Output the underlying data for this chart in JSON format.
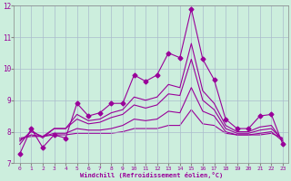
{
  "xlabel": "Windchill (Refroidissement éolien,°C)",
  "x": [
    0,
    1,
    2,
    3,
    4,
    5,
    6,
    7,
    8,
    9,
    10,
    11,
    12,
    13,
    14,
    15,
    16,
    17,
    18,
    19,
    20,
    21,
    22,
    23
  ],
  "line1": [
    7.3,
    8.1,
    7.5,
    7.9,
    7.8,
    8.9,
    8.5,
    8.6,
    8.9,
    8.9,
    9.8,
    9.6,
    9.8,
    10.5,
    10.35,
    11.9,
    10.3,
    9.65,
    8.4,
    8.1,
    8.1,
    8.5,
    8.55,
    7.6
  ],
  "line2": [
    7.6,
    8.05,
    7.8,
    8.1,
    8.1,
    8.55,
    8.35,
    8.4,
    8.6,
    8.7,
    9.1,
    9.0,
    9.1,
    9.5,
    9.4,
    10.8,
    9.3,
    8.9,
    8.2,
    8.0,
    8.0,
    8.15,
    8.2,
    7.7
  ],
  "line3": [
    7.7,
    8.0,
    7.85,
    8.1,
    8.1,
    8.4,
    8.25,
    8.3,
    8.45,
    8.55,
    8.85,
    8.75,
    8.85,
    9.2,
    9.15,
    10.3,
    9.0,
    8.7,
    8.1,
    7.95,
    7.95,
    8.05,
    8.1,
    7.75
  ],
  "line4": [
    7.75,
    7.9,
    7.85,
    7.95,
    7.95,
    8.1,
    8.05,
    8.05,
    8.1,
    8.2,
    8.4,
    8.35,
    8.4,
    8.65,
    8.6,
    9.4,
    8.65,
    8.5,
    8.0,
    7.9,
    7.9,
    7.95,
    8.0,
    7.7
  ],
  "line5": [
    7.8,
    7.85,
    7.85,
    7.9,
    7.9,
    7.95,
    7.95,
    7.95,
    7.95,
    8.0,
    8.1,
    8.1,
    8.1,
    8.2,
    8.2,
    8.7,
    8.25,
    8.2,
    7.95,
    7.9,
    7.9,
    7.9,
    7.95,
    7.8
  ],
  "ylim": [
    7,
    12
  ],
  "yticks": [
    7,
    8,
    9,
    10,
    11,
    12
  ],
  "line_color": "#990099",
  "bg_color": "#cceedd",
  "grid_color": "#aabbcc",
  "markersize": 2.5,
  "linewidth": 0.8
}
